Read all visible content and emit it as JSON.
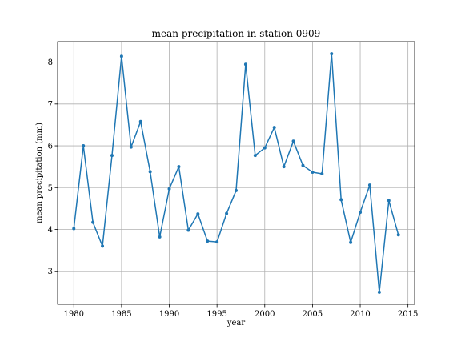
{
  "chart_data": {
    "type": "line",
    "title": "mean precipitation in station 0909",
    "xlabel": "year",
    "ylabel": "mean precipitation (mm)",
    "xlim": [
      1978.3,
      2015.7
    ],
    "ylim": [
      2.21,
      8.49
    ],
    "xticks": [
      1980,
      1985,
      1990,
      1995,
      2000,
      2005,
      2010,
      2015
    ],
    "yticks": [
      3,
      4,
      5,
      6,
      7,
      8
    ],
    "grid": true,
    "color": "#1f77b4",
    "series": [
      {
        "x": [
          1980,
          1981,
          1982,
          1983,
          1984,
          1985,
          1986,
          1987,
          1988,
          1989,
          1990,
          1991,
          1992,
          1993,
          1994,
          1995,
          1996,
          1997,
          1998,
          1999,
          2000,
          2001,
          2002,
          2003,
          2004,
          2005,
          2006,
          2007,
          2008,
          2009,
          2010,
          2011,
          2012,
          2013,
          2014
        ],
        "values": [
          4.02,
          6.0,
          4.17,
          3.6,
          5.77,
          8.14,
          5.97,
          6.58,
          5.38,
          3.82,
          4.97,
          5.5,
          3.98,
          4.37,
          3.72,
          3.7,
          4.38,
          4.93,
          7.95,
          5.77,
          5.95,
          6.44,
          5.5,
          6.11,
          5.53,
          5.37,
          5.33,
          8.2,
          4.71,
          3.69,
          4.41,
          5.06,
          2.5,
          4.69,
          3.87
        ]
      }
    ]
  }
}
